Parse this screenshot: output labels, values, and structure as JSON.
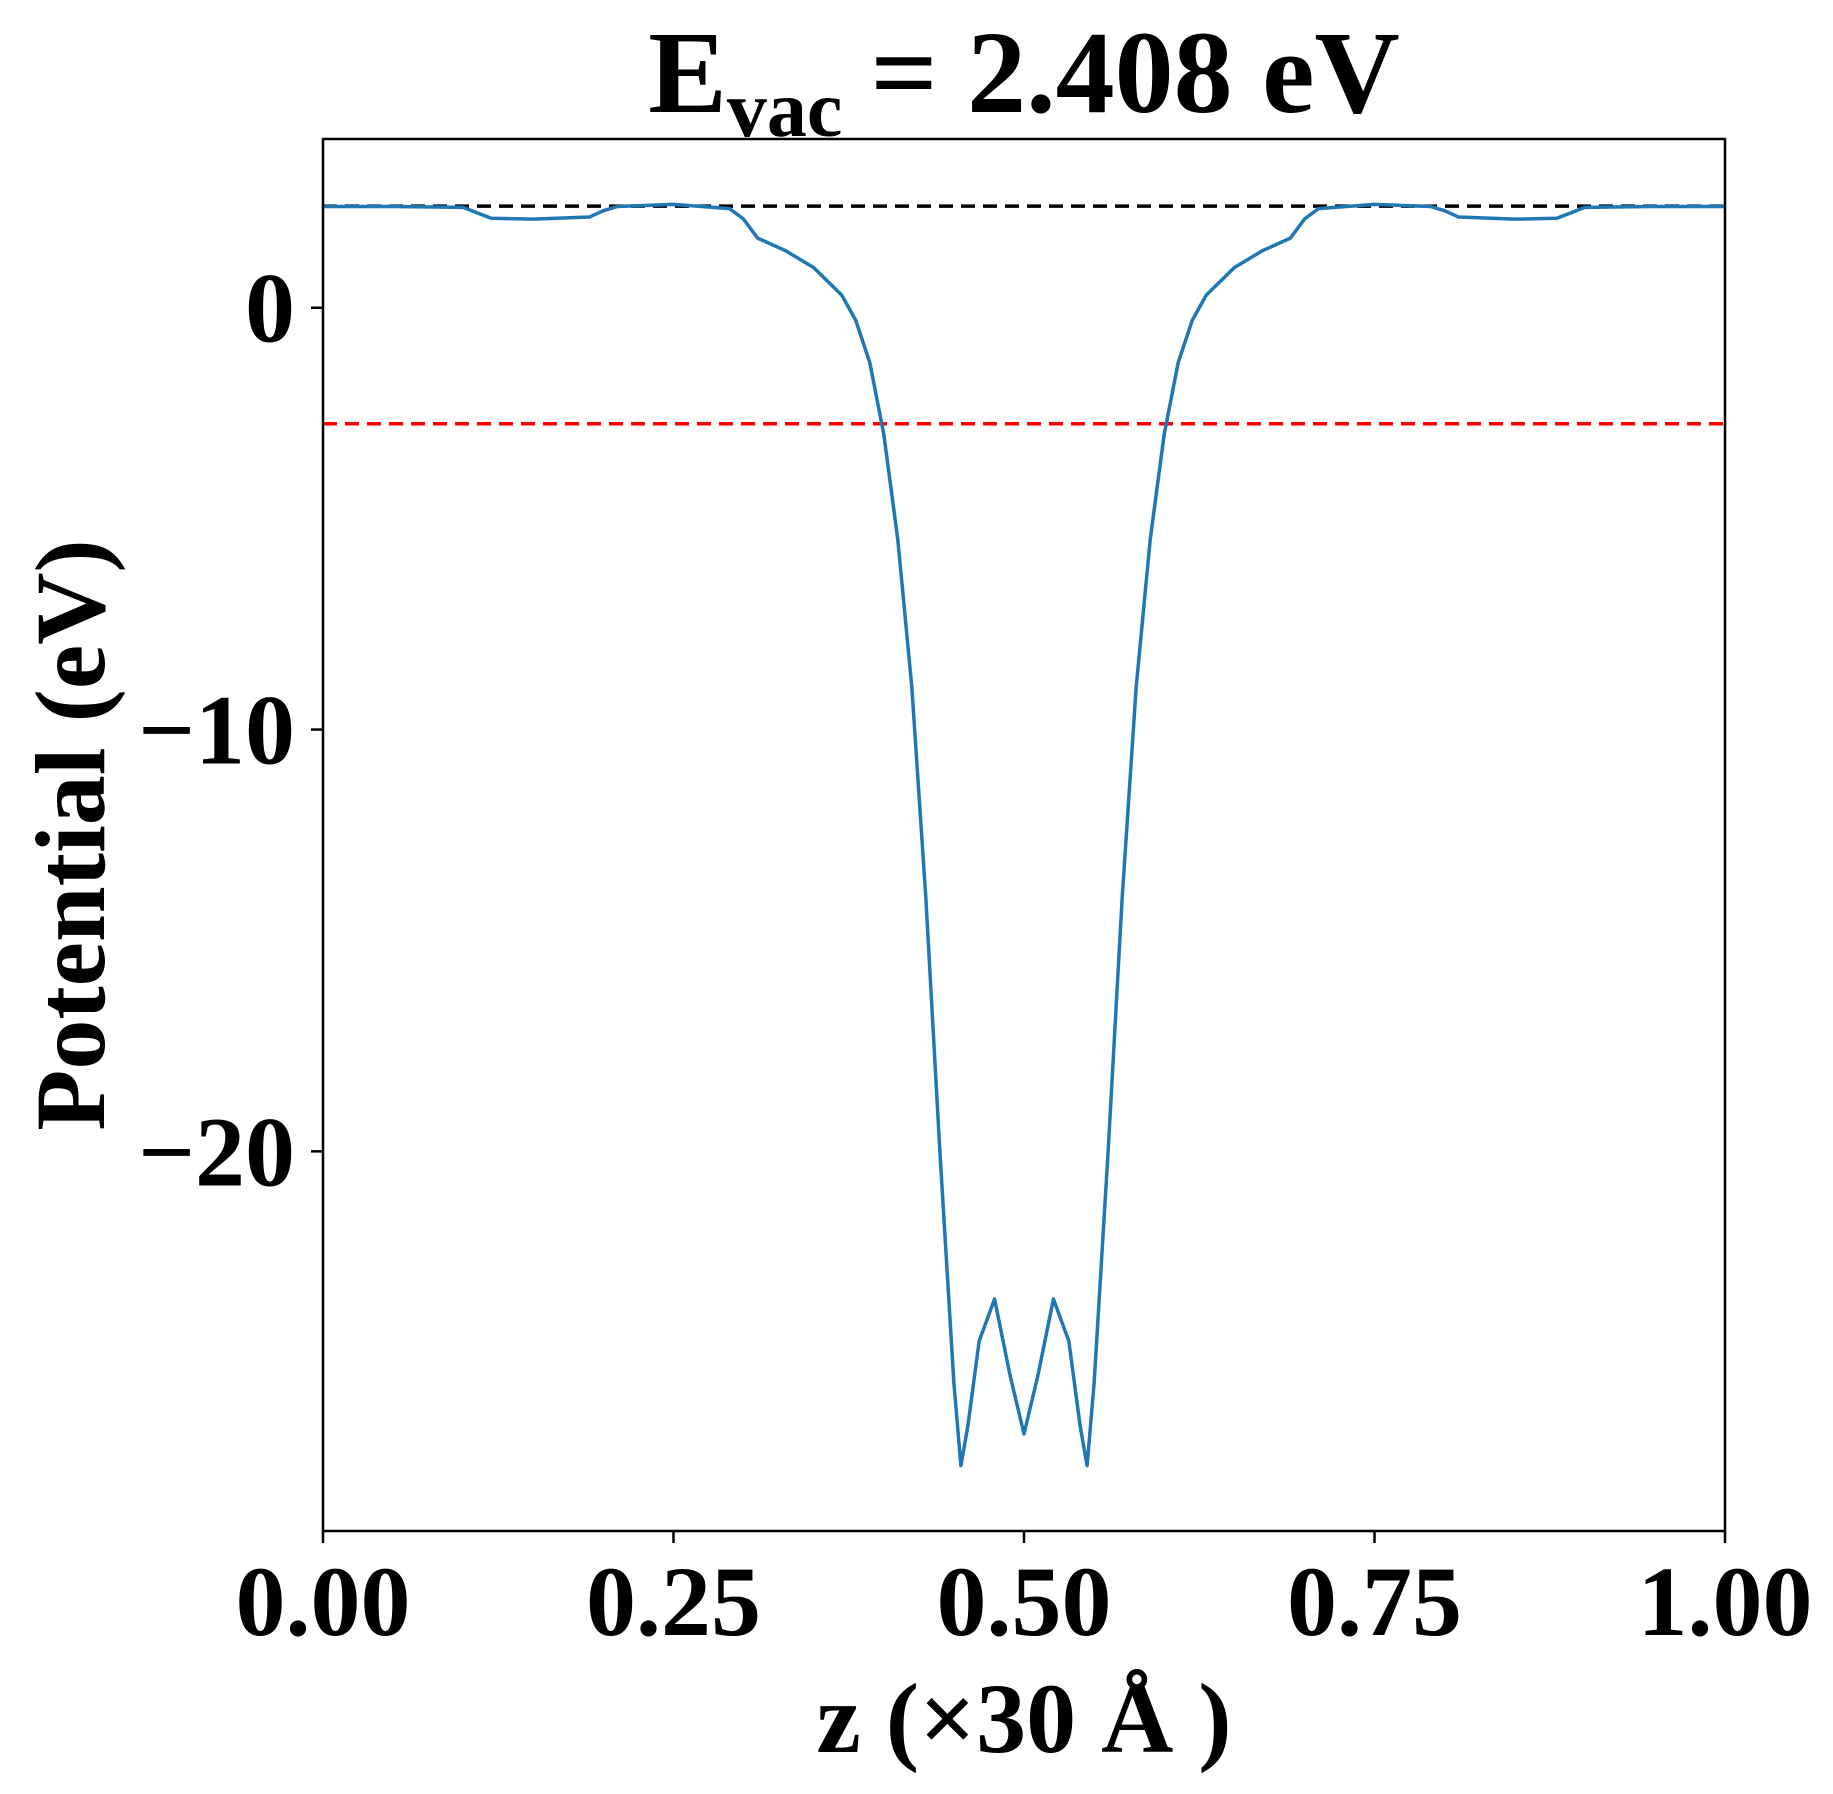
{
  "chart_data": {
    "type": "line",
    "title": {
      "main": "E",
      "sub": "vac",
      "rest": "= 2.408 eV"
    },
    "xlabel": "z (×30 Å )",
    "ylabel": "Potential (eV)",
    "xlim": [
      0,
      1
    ],
    "ylim": [
      -29,
      4
    ],
    "xticks": [
      {
        "value": 0,
        "label": "0.00"
      },
      {
        "value": 0.25,
        "label": "0.25"
      },
      {
        "value": 0.5,
        "label": "0.50"
      },
      {
        "value": 0.75,
        "label": "0.75"
      },
      {
        "value": 1,
        "label": "1.00"
      }
    ],
    "yticks": [
      0,
      {
        "value": -10,
        "label": "−10"
      },
      {
        "value": -20,
        "label": "−20"
      }
    ],
    "grid": false,
    "hlines": [
      {
        "value": 2.408,
        "color": "#000000"
      },
      {
        "value": -2.75,
        "color": "#ff0000"
      }
    ],
    "series": [
      {
        "color": "#1f77b4",
        "x": [
          0,
          0.05,
          0.1,
          0.11,
          0.12,
          0.15,
          0.19,
          0.2,
          0.21,
          0.25,
          0.29,
          0.3,
          0.31,
          0.33,
          0.35,
          0.37,
          0.38,
          0.39,
          0.4,
          0.41,
          0.42,
          0.43,
          0.44,
          0.45,
          0.455,
          0.46,
          0.468,
          0.479,
          0.49,
          0.5,
          0.51,
          0.521,
          0.532,
          0.54,
          0.545,
          0.55,
          0.56,
          0.57,
          0.58,
          0.59,
          0.6,
          0.61,
          0.62,
          0.63,
          0.65,
          0.67,
          0.69,
          0.7,
          0.71,
          0.75,
          0.79,
          0.8,
          0.81,
          0.85,
          0.88,
          0.89,
          0.9,
          0.95,
          1.0
        ],
        "values": [
          2.4,
          2.4,
          2.38,
          2.25,
          2.12,
          2.1,
          2.15,
          2.3,
          2.4,
          2.45,
          2.35,
          2.1,
          1.65,
          1.35,
          0.95,
          0.3,
          -0.3,
          -1.3,
          -3.0,
          -5.5,
          -9.0,
          -14.0,
          -20.0,
          -25.5,
          -27.45,
          -26.5,
          -24.5,
          -23.5,
          -25.3,
          -26.7,
          -25.3,
          -23.5,
          -24.5,
          -26.5,
          -27.45,
          -25.5,
          -20.0,
          -14.0,
          -9.0,
          -5.5,
          -3.0,
          -1.3,
          -0.3,
          0.3,
          0.95,
          1.35,
          1.65,
          2.1,
          2.35,
          2.45,
          2.4,
          2.3,
          2.15,
          2.1,
          2.12,
          2.25,
          2.38,
          2.4,
          2.4
        ]
      }
    ]
  }
}
